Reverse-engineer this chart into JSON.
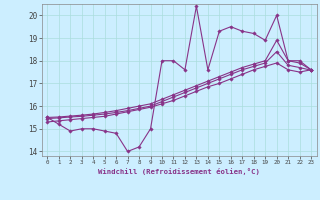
{
  "xlabel": "Windchill (Refroidissement éolien,°C)",
  "bg_color": "#cceeff",
  "grid_color": "#aadddd",
  "line_color": "#883388",
  "xlim_min": -0.5,
  "xlim_max": 23.5,
  "ylim_min": 13.8,
  "ylim_max": 20.5,
  "yticks": [
    14,
    15,
    16,
    17,
    18,
    19,
    20
  ],
  "xticks": [
    0,
    1,
    2,
    3,
    4,
    5,
    6,
    7,
    8,
    9,
    10,
    11,
    12,
    13,
    14,
    15,
    16,
    17,
    18,
    19,
    20,
    21,
    22,
    23
  ],
  "series_jagged": [
    15.5,
    15.2,
    14.9,
    15.0,
    15.0,
    14.9,
    14.8,
    14.0,
    14.2,
    15.0,
    18.0,
    18.0,
    17.6,
    20.4,
    17.6,
    19.3,
    19.5,
    19.3,
    19.2,
    18.9,
    20.0,
    18.0,
    18.0,
    17.6
  ],
  "series_linear1": [
    15.3,
    15.35,
    15.4,
    15.45,
    15.5,
    15.55,
    15.65,
    15.75,
    15.85,
    15.95,
    16.1,
    16.25,
    16.45,
    16.65,
    16.85,
    17.0,
    17.2,
    17.4,
    17.6,
    17.75,
    17.9,
    17.6,
    17.5,
    17.6
  ],
  "series_linear2": [
    15.5,
    15.52,
    15.56,
    15.6,
    15.65,
    15.72,
    15.8,
    15.9,
    16.0,
    16.1,
    16.3,
    16.5,
    16.7,
    16.9,
    17.1,
    17.3,
    17.5,
    17.7,
    17.85,
    18.0,
    18.9,
    18.0,
    17.9,
    17.6
  ],
  "series_linear3": [
    15.45,
    15.48,
    15.52,
    15.55,
    15.6,
    15.65,
    15.72,
    15.8,
    15.9,
    16.0,
    16.2,
    16.4,
    16.6,
    16.8,
    17.0,
    17.2,
    17.4,
    17.6,
    17.75,
    17.9,
    18.4,
    17.8,
    17.7,
    17.58
  ]
}
